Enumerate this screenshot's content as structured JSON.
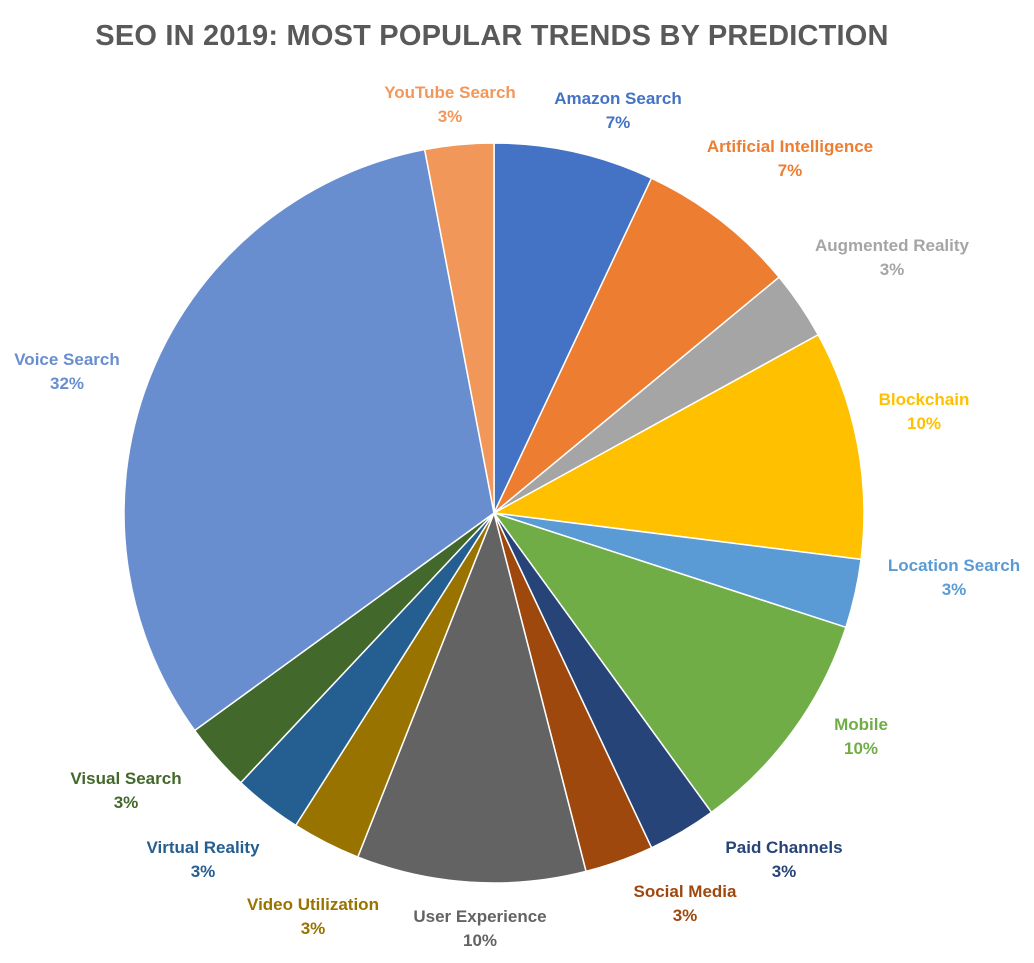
{
  "chart_data": {
    "type": "pie",
    "title": "SEO IN 2019: MOST POPULAR TRENDS BY PREDICTION",
    "start_angle_deg": 0,
    "direction": "clockwise",
    "slices": [
      {
        "label": "Amazon Search",
        "value": 7,
        "display": "7%",
        "color": "#4472C4"
      },
      {
        "label": "Artificial Intelligence",
        "value": 7,
        "display": "7%",
        "color": "#ED7D31"
      },
      {
        "label": "Augmented Reality",
        "value": 3,
        "display": "3%",
        "color": "#A5A5A5"
      },
      {
        "label": "Blockchain",
        "value": 10,
        "display": "10%",
        "color": "#FFC000"
      },
      {
        "label": "Location Search",
        "value": 3,
        "display": "3%",
        "color": "#5B9BD5"
      },
      {
        "label": "Mobile",
        "value": 10,
        "display": "10%",
        "color": "#70AD47"
      },
      {
        "label": "Paid Channels",
        "value": 3,
        "display": "3%",
        "color": "#264478"
      },
      {
        "label": "Social Media",
        "value": 3,
        "display": "3%",
        "color": "#9E480E"
      },
      {
        "label": "User Experience",
        "value": 10,
        "display": "10%",
        "color": "#636363"
      },
      {
        "label": "Video Utilization",
        "value": 3,
        "display": "3%",
        "color": "#997300"
      },
      {
        "label": "Virtual Reality",
        "value": 3,
        "display": "3%",
        "color": "#255E91"
      },
      {
        "label": "Visual Search",
        "value": 3,
        "display": "3%",
        "color": "#43682B"
      },
      {
        "label": "Voice Search",
        "value": 32,
        "display": "32%",
        "color": "#698ED0"
      },
      {
        "label": "YouTube Search",
        "value": 3,
        "display": "3%",
        "color": "#F1975A"
      }
    ]
  }
}
